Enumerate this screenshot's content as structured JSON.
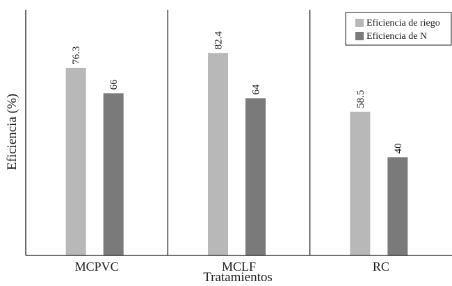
{
  "chart_data": {
    "type": "bar",
    "categories": [
      "MCPVC",
      "MCLF",
      "RC"
    ],
    "series": [
      {
        "name": "Eficiencia de riego",
        "values": [
          76.3,
          82.4,
          58.5
        ],
        "labels": [
          "76.3",
          "82.4",
          "58.5"
        ],
        "color": "#b8b8b8"
      },
      {
        "name": "Eficiencia de N",
        "values": [
          66,
          64,
          40
        ],
        "labels": [
          "66",
          "64",
          "40"
        ],
        "color": "#7a7a7a"
      }
    ],
    "title": "",
    "xlabel": "Tratamientos",
    "ylabel": "Eficiencia (%)",
    "ylim": [
      0,
      100
    ],
    "grid": false,
    "group_separators": true,
    "legend_position": "top-right",
    "axis_color": "#1a1a1a"
  }
}
